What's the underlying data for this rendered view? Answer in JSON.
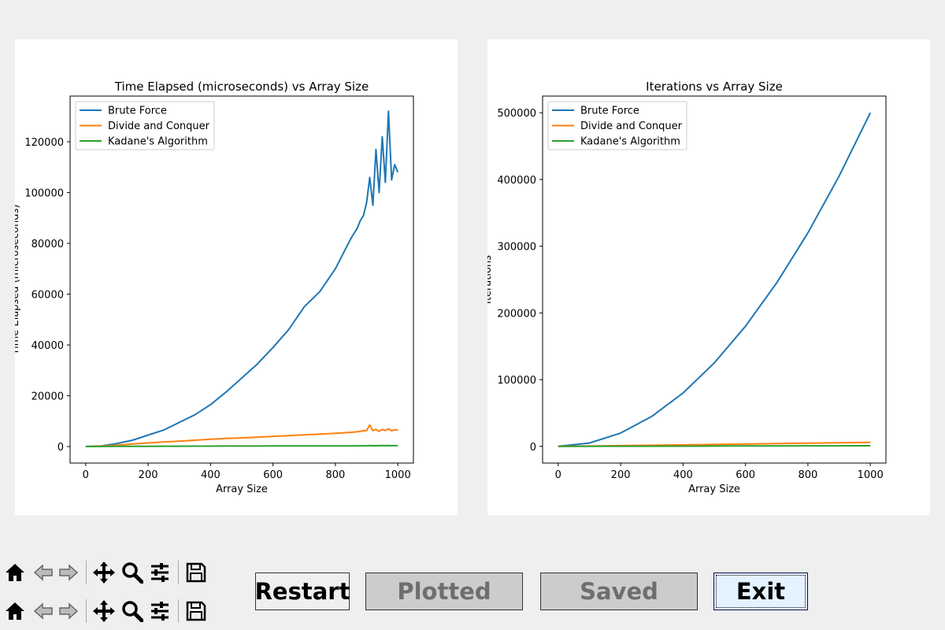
{
  "chart_data": [
    {
      "type": "line",
      "title": "Time Elapsed (microseconds) vs Array Size",
      "xlabel": "Array Size",
      "ylabel": "Time Elapsed (microseconds)",
      "xlim": [
        -50,
        1050
      ],
      "ylim": [
        -6500,
        138000
      ],
      "xticks": [
        0,
        200,
        400,
        600,
        800,
        1000
      ],
      "yticks": [
        0,
        20000,
        40000,
        60000,
        80000,
        100000,
        120000
      ],
      "legend_position": "upper left",
      "grid": false,
      "x": [
        0,
        50,
        100,
        150,
        200,
        250,
        300,
        350,
        400,
        450,
        500,
        550,
        600,
        650,
        700,
        750,
        800,
        850,
        870,
        880,
        890,
        900,
        910,
        920,
        930,
        940,
        950,
        960,
        970,
        980,
        990,
        1000
      ],
      "series": [
        {
          "name": "Brute Force",
          "color": "#1f77b4",
          "values": [
            0,
            200,
            1200,
            2500,
            4500,
            6500,
            9500,
            12500,
            16500,
            21500,
            27000,
            32500,
            39000,
            46000,
            55000,
            61000,
            70000,
            82000,
            86000,
            89000,
            91000,
            96000,
            106000,
            95000,
            117000,
            100000,
            122000,
            104000,
            132000,
            105000,
            111000,
            108000
          ]
        },
        {
          "name": "Divide and Conquer",
          "color": "#ff7f0e",
          "values": [
            0,
            150,
            500,
            1000,
            1400,
            1800,
            2100,
            2500,
            2900,
            3200,
            3400,
            3700,
            4000,
            4300,
            4600,
            4900,
            5200,
            5600,
            5800,
            6000,
            6200,
            6300,
            8500,
            6200,
            6800,
            6000,
            6700,
            6300,
            7000,
            6200,
            6600,
            6500
          ]
        },
        {
          "name": "Kadane's Algorithm",
          "color": "#2ca02c",
          "values": [
            0,
            50,
            80,
            100,
            120,
            140,
            150,
            160,
            180,
            190,
            200,
            210,
            220,
            230,
            240,
            250,
            260,
            270,
            280,
            290,
            290,
            300,
            400,
            300,
            350,
            320,
            380,
            320,
            400,
            330,
            350,
            340
          ]
        }
      ]
    },
    {
      "type": "line",
      "title": "Iterations vs Array Size",
      "xlabel": "Array Size",
      "ylabel": "Iterations",
      "xlim": [
        -50,
        1050
      ],
      "ylim": [
        -25000,
        525000
      ],
      "xticks": [
        0,
        200,
        400,
        600,
        800,
        1000
      ],
      "yticks": [
        0,
        100000,
        200000,
        300000,
        400000,
        500000
      ],
      "legend_position": "upper left",
      "grid": false,
      "x": [
        0,
        100,
        200,
        300,
        400,
        500,
        600,
        700,
        800,
        900,
        1000
      ],
      "series": [
        {
          "name": "Brute Force",
          "color": "#1f77b4",
          "values": [
            0,
            5000,
            20000,
            45000,
            80000,
            125000,
            180000,
            245000,
            320000,
            405000,
            500000
          ]
        },
        {
          "name": "Divide and Conquer",
          "color": "#ff7f0e",
          "values": [
            0,
            500,
            1100,
            1700,
            2300,
            2900,
            3500,
            4100,
            4700,
            5300,
            5900
          ]
        },
        {
          "name": "Kadane's Algorithm",
          "color": "#2ca02c",
          "values": [
            0,
            100,
            200,
            300,
            400,
            500,
            600,
            700,
            800,
            900,
            1000
          ]
        }
      ]
    }
  ],
  "toolbar_icons": [
    "home-icon",
    "back-arrow-icon",
    "forward-arrow-icon",
    "pan-icon",
    "zoom-icon",
    "configure-subplots-icon",
    "save-icon"
  ],
  "buttons": {
    "restart": "Restart",
    "plotted": "Plotted",
    "saved": "Saved",
    "exit": "Exit"
  },
  "colors": {
    "background": "#efefef",
    "disabled_button": "#cccccc",
    "disabled_text": "#6e6e6e",
    "focused_button": "#e4f3ff"
  }
}
